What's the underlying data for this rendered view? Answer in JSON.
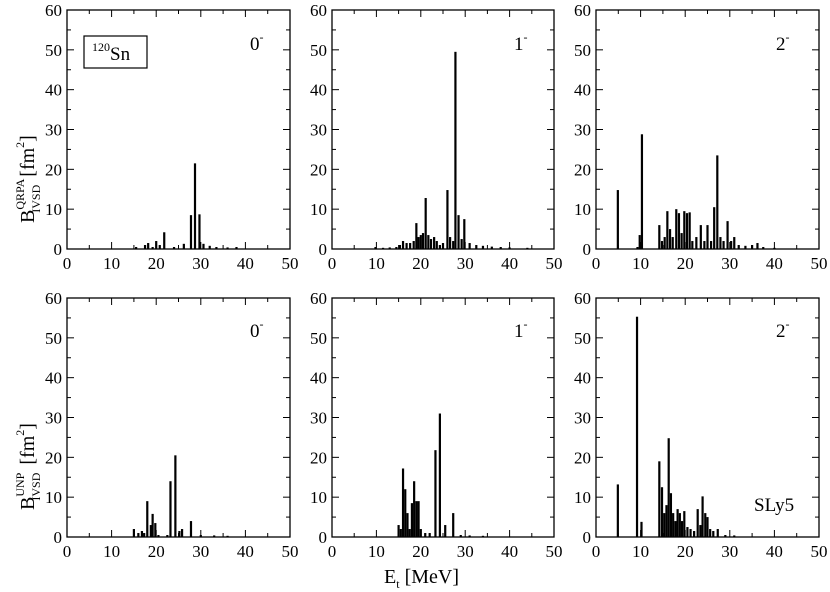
{
  "chart_data": {
    "type": "bar",
    "shared": {
      "xlim": [
        0,
        50
      ],
      "ylim": [
        0,
        60
      ],
      "xticks": [
        0,
        10,
        20,
        30,
        40,
        50
      ],
      "yticks": [
        0,
        10,
        20,
        30,
        40,
        50,
        60
      ],
      "xlabel": {
        "main": "E",
        "sub": "t",
        "rest": " [MeV]"
      },
      "nucleus": {
        "sup": "120",
        "name": "Sn"
      },
      "force": "SLy5",
      "ylabel_top": {
        "main": "B",
        "sup": "QRPA",
        "sub": "IVSD",
        "unit": "[fm",
        "unit_sup": "2",
        "close": "]"
      },
      "ylabel_bottom": {
        "main": "B",
        "sup": "UNP",
        "sub": "IVSD",
        "unit": "[fm",
        "unit_sup": "2",
        "close": "]"
      }
    },
    "panels": [
      {
        "label_main": "0",
        "label_sup": "-",
        "bars": [
          {
            "x": 15.5,
            "y": 0.5
          },
          {
            "x": 17.5,
            "y": 1.0
          },
          {
            "x": 18.2,
            "y": 1.5
          },
          {
            "x": 19.2,
            "y": 0.5
          },
          {
            "x": 20.0,
            "y": 2.0
          },
          {
            "x": 20.8,
            "y": 1.0
          },
          {
            "x": 21.8,
            "y": 4.2
          },
          {
            "x": 24.0,
            "y": 0.5
          },
          {
            "x": 26.2,
            "y": 1.3
          },
          {
            "x": 27.8,
            "y": 8.5
          },
          {
            "x": 28.7,
            "y": 21.5
          },
          {
            "x": 29.7,
            "y": 8.7
          },
          {
            "x": 30.6,
            "y": 1.3
          },
          {
            "x": 32.0,
            "y": 0.8
          },
          {
            "x": 33.5,
            "y": 0.5
          },
          {
            "x": 36.0,
            "y": 0.4
          },
          {
            "x": 38.0,
            "y": 0.5
          }
        ]
      },
      {
        "label_main": "1",
        "label_sup": "-",
        "bars": [
          {
            "x": 9.8,
            "y": 0.5
          },
          {
            "x": 11.5,
            "y": 0.3
          },
          {
            "x": 13.0,
            "y": 0.4
          },
          {
            "x": 14.5,
            "y": 0.5
          },
          {
            "x": 15.3,
            "y": 1.0
          },
          {
            "x": 16.0,
            "y": 2.0
          },
          {
            "x": 16.8,
            "y": 1.5
          },
          {
            "x": 17.6,
            "y": 1.5
          },
          {
            "x": 18.4,
            "y": 2.0
          },
          {
            "x": 19.0,
            "y": 6.5
          },
          {
            "x": 19.5,
            "y": 3.0
          },
          {
            "x": 20.0,
            "y": 3.5
          },
          {
            "x": 20.5,
            "y": 4.0
          },
          {
            "x": 21.1,
            "y": 12.8
          },
          {
            "x": 21.7,
            "y": 3.5
          },
          {
            "x": 22.3,
            "y": 2.5
          },
          {
            "x": 23.0,
            "y": 3.0
          },
          {
            "x": 23.6,
            "y": 2.0
          },
          {
            "x": 24.3,
            "y": 1.0
          },
          {
            "x": 25.0,
            "y": 1.5
          },
          {
            "x": 26.0,
            "y": 14.8
          },
          {
            "x": 26.6,
            "y": 3.0
          },
          {
            "x": 27.3,
            "y": 2.0
          },
          {
            "x": 27.8,
            "y": 49.5
          },
          {
            "x": 28.5,
            "y": 8.5
          },
          {
            "x": 29.2,
            "y": 2.5
          },
          {
            "x": 29.8,
            "y": 7.5
          },
          {
            "x": 31.0,
            "y": 1.5
          },
          {
            "x": 32.5,
            "y": 1.0
          },
          {
            "x": 34.0,
            "y": 0.8
          },
          {
            "x": 36.0,
            "y": 0.6
          },
          {
            "x": 38.0,
            "y": 0.5
          },
          {
            "x": 40.0,
            "y": 0.4
          },
          {
            "x": 44.0,
            "y": 0.3
          }
        ]
      },
      {
        "label_main": "2",
        "label_sup": "-",
        "bars": [
          {
            "x": 4.9,
            "y": 14.8
          },
          {
            "x": 9.3,
            "y": 0.5
          },
          {
            "x": 9.8,
            "y": 3.5
          },
          {
            "x": 10.3,
            "y": 28.8
          },
          {
            "x": 14.2,
            "y": 6.0
          },
          {
            "x": 14.8,
            "y": 2.0
          },
          {
            "x": 15.4,
            "y": 3.0
          },
          {
            "x": 16.0,
            "y": 9.5
          },
          {
            "x": 16.6,
            "y": 5.0
          },
          {
            "x": 17.2,
            "y": 3.0
          },
          {
            "x": 18.0,
            "y": 10.0
          },
          {
            "x": 18.6,
            "y": 9.0
          },
          {
            "x": 19.2,
            "y": 4.0
          },
          {
            "x": 19.8,
            "y": 9.5
          },
          {
            "x": 20.4,
            "y": 9.0
          },
          {
            "x": 21.0,
            "y": 9.2
          },
          {
            "x": 21.6,
            "y": 2.0
          },
          {
            "x": 22.5,
            "y": 3.0
          },
          {
            "x": 23.5,
            "y": 6.0
          },
          {
            "x": 24.3,
            "y": 2.0
          },
          {
            "x": 25.0,
            "y": 6.0
          },
          {
            "x": 25.8,
            "y": 2.0
          },
          {
            "x": 26.5,
            "y": 10.5
          },
          {
            "x": 27.2,
            "y": 23.5
          },
          {
            "x": 27.9,
            "y": 3.0
          },
          {
            "x": 28.6,
            "y": 2.0
          },
          {
            "x": 29.5,
            "y": 7.0
          },
          {
            "x": 30.3,
            "y": 2.0
          },
          {
            "x": 31.0,
            "y": 3.0
          },
          {
            "x": 32.0,
            "y": 1.0
          },
          {
            "x": 33.5,
            "y": 0.8
          },
          {
            "x": 35.0,
            "y": 1.0
          },
          {
            "x": 36.2,
            "y": 1.5
          },
          {
            "x": 37.5,
            "y": 0.5
          },
          {
            "x": 40.0,
            "y": 0.3
          }
        ]
      },
      {
        "label_main": "0",
        "label_sup": "-",
        "bars": [
          {
            "x": 15.0,
            "y": 2.0
          },
          {
            "x": 16.0,
            "y": 1.0
          },
          {
            "x": 16.8,
            "y": 1.5
          },
          {
            "x": 17.3,
            "y": 1.0
          },
          {
            "x": 18.0,
            "y": 9.0
          },
          {
            "x": 18.8,
            "y": 3.0
          },
          {
            "x": 19.2,
            "y": 5.8
          },
          {
            "x": 19.8,
            "y": 3.5
          },
          {
            "x": 20.5,
            "y": 0.5
          },
          {
            "x": 22.5,
            "y": 0.5
          },
          {
            "x": 23.2,
            "y": 14.0
          },
          {
            "x": 24.3,
            "y": 20.5
          },
          {
            "x": 25.2,
            "y": 1.5
          },
          {
            "x": 25.8,
            "y": 2.0
          },
          {
            "x": 27.8,
            "y": 4.0
          },
          {
            "x": 30.0,
            "y": 0.5
          },
          {
            "x": 33.0,
            "y": 0.4
          },
          {
            "x": 36.0,
            "y": 0.3
          }
        ]
      },
      {
        "label_main": "1",
        "label_sup": "-",
        "bars": [
          {
            "x": 15.0,
            "y": 3.0
          },
          {
            "x": 15.5,
            "y": 2.0
          },
          {
            "x": 16.0,
            "y": 17.2
          },
          {
            "x": 16.5,
            "y": 12.0
          },
          {
            "x": 17.0,
            "y": 6.0
          },
          {
            "x": 17.5,
            "y": 2.0
          },
          {
            "x": 18.0,
            "y": 8.5
          },
          {
            "x": 18.5,
            "y": 14.0
          },
          {
            "x": 19.0,
            "y": 9.0
          },
          {
            "x": 19.5,
            "y": 9.0
          },
          {
            "x": 20.0,
            "y": 2.0
          },
          {
            "x": 21.0,
            "y": 1.0
          },
          {
            "x": 22.0,
            "y": 1.0
          },
          {
            "x": 23.3,
            "y": 21.8
          },
          {
            "x": 24.3,
            "y": 31.0
          },
          {
            "x": 25.5,
            "y": 3.0
          },
          {
            "x": 27.3,
            "y": 6.0
          },
          {
            "x": 29.0,
            "y": 0.5
          },
          {
            "x": 31.0,
            "y": 0.4
          },
          {
            "x": 34.0,
            "y": 0.3
          }
        ]
      },
      {
        "label_main": "2",
        "label_sup": "-",
        "bars": [
          {
            "x": 4.9,
            "y": 13.2
          },
          {
            "x": 9.2,
            "y": 55.3
          },
          {
            "x": 10.2,
            "y": 3.8
          },
          {
            "x": 14.2,
            "y": 19.0
          },
          {
            "x": 14.8,
            "y": 12.5
          },
          {
            "x": 15.3,
            "y": 6.0
          },
          {
            "x": 15.8,
            "y": 8.0
          },
          {
            "x": 16.3,
            "y": 24.8
          },
          {
            "x": 16.8,
            "y": 11.0
          },
          {
            "x": 17.3,
            "y": 6.0
          },
          {
            "x": 17.8,
            "y": 4.0
          },
          {
            "x": 18.3,
            "y": 7.0
          },
          {
            "x": 18.8,
            "y": 6.0
          },
          {
            "x": 19.3,
            "y": 4.0
          },
          {
            "x": 19.8,
            "y": 6.5
          },
          {
            "x": 20.5,
            "y": 2.5
          },
          {
            "x": 21.2,
            "y": 2.0
          },
          {
            "x": 22.0,
            "y": 1.5
          },
          {
            "x": 22.8,
            "y": 7.0
          },
          {
            "x": 23.4,
            "y": 3.0
          },
          {
            "x": 23.9,
            "y": 10.2
          },
          {
            "x": 24.5,
            "y": 6.0
          },
          {
            "x": 25.0,
            "y": 5.0
          },
          {
            "x": 25.6,
            "y": 2.0
          },
          {
            "x": 26.3,
            "y": 1.5
          },
          {
            "x": 27.3,
            "y": 2.0
          },
          {
            "x": 29.0,
            "y": 0.5
          },
          {
            "x": 31.0,
            "y": 0.4
          }
        ]
      }
    ]
  }
}
